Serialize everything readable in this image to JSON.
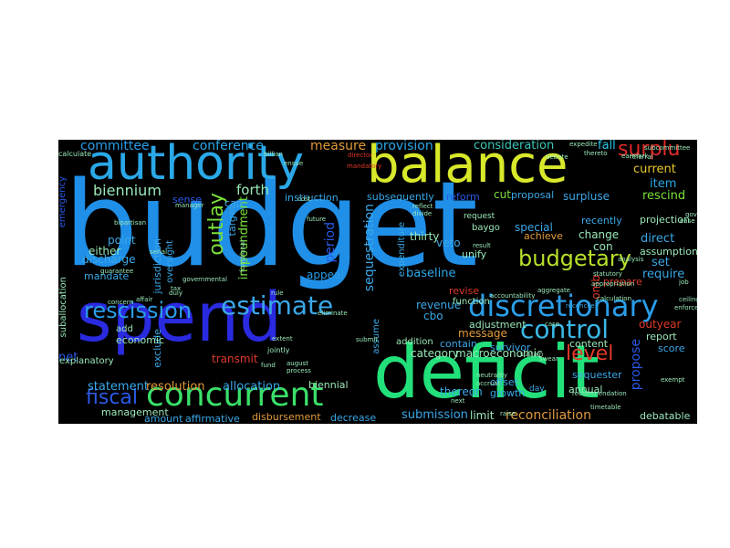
{
  "cloud": {
    "background": "#000000",
    "words": [
      {
        "text": "budget",
        "color": "#1f8fe8"
      },
      {
        "text": "spend",
        "color": "#2a2ae0"
      },
      {
        "text": "deficit",
        "color": "#22e07a"
      },
      {
        "text": "balance",
        "color": "#d8e82a"
      },
      {
        "text": "authority",
        "color": "#2aa8e8"
      },
      {
        "text": "discretionary",
        "color": "#2a9ee8"
      },
      {
        "text": "concurrent",
        "color": "#3ae06a"
      },
      {
        "text": "estimate",
        "color": "#3aa8e8"
      },
      {
        "text": "rescission",
        "color": "#2a9ee8"
      },
      {
        "text": "control",
        "color": "#3ab8e8"
      },
      {
        "text": "budgetary",
        "color": "#b8e02a"
      },
      {
        "text": "outlay",
        "color": "#7ae03a"
      },
      {
        "text": "fiscal",
        "color": "#2a5ae8"
      },
      {
        "text": "level",
        "color": "#e03a2a"
      },
      {
        "text": "surplu",
        "color": "#e02a2a"
      },
      {
        "text": "biennium",
        "color": "#9ae8b8"
      },
      {
        "text": "committee",
        "color": "#2a9ee8"
      },
      {
        "text": "conference",
        "color": "#2aa8e8"
      },
      {
        "text": "forth",
        "color": "#9ae8b8"
      },
      {
        "text": "measure",
        "color": "#e09a3a"
      },
      {
        "text": "provision",
        "color": "#2aa8e8"
      },
      {
        "text": "consideration",
        "color": "#3ac8b8"
      },
      {
        "text": "fall",
        "color": "#2ac8e8"
      },
      {
        "text": "current",
        "color": "#e8c82a"
      },
      {
        "text": "item",
        "color": "#2aa8e8"
      },
      {
        "text": "rescind",
        "color": "#7ae03a"
      },
      {
        "text": "surpluse",
        "color": "#3aa8e8"
      },
      {
        "text": "cut",
        "color": "#7ae03a"
      },
      {
        "text": "proposal",
        "color": "#3aa8e8"
      },
      {
        "text": "reform",
        "color": "#2a5ae8"
      },
      {
        "text": "subsequently",
        "color": "#3aa8e8"
      },
      {
        "text": "sequestration",
        "color": "#3aa8e8"
      },
      {
        "text": "impoundment",
        "color": "#7ae03a"
      },
      {
        "text": "jurisdiction",
        "color": "#3aa8e8"
      },
      {
        "text": "period",
        "color": "#2a5ae8"
      },
      {
        "text": "appeal",
        "color": "#2a9ee8"
      },
      {
        "text": "instruction",
        "color": "#3aa8e8"
      },
      {
        "text": "sense",
        "color": "#2a5ae8"
      },
      {
        "text": "cap",
        "color": "#3aa8e8"
      },
      {
        "text": "target",
        "color": "#3aa8e8"
      },
      {
        "text": "point",
        "color": "#3aa8e8"
      },
      {
        "text": "either",
        "color": "#9ae8b8"
      },
      {
        "text": "discharge",
        "color": "#3aa8e8"
      },
      {
        "text": "mandate",
        "color": "#3aa8e8"
      },
      {
        "text": "oversight",
        "color": "#3aa8e8"
      },
      {
        "text": "thirty",
        "color": "#9ae8b8"
      },
      {
        "text": "veto",
        "color": "#3aa8e8"
      },
      {
        "text": "baseline",
        "color": "#2aa8e8"
      },
      {
        "text": "unify",
        "color": "#9ae8b8"
      },
      {
        "text": "special",
        "color": "#3aa8e8"
      },
      {
        "text": "achieve",
        "color": "#e09a3a"
      },
      {
        "text": "recently",
        "color": "#3aa8e8"
      },
      {
        "text": "change",
        "color": "#9ae8b8"
      },
      {
        "text": "con",
        "color": "#9ae8b8"
      },
      {
        "text": "projection",
        "color": "#9ae8b8"
      },
      {
        "text": "assumption",
        "color": "#9ae8b8"
      },
      {
        "text": "direct",
        "color": "#3aa8e8"
      },
      {
        "text": "set",
        "color": "#3aa8e8"
      },
      {
        "text": "require",
        "color": "#3aa8e8"
      },
      {
        "text": "omb",
        "color": "#e03a2a"
      },
      {
        "text": "prepare",
        "color": "#e03a2a"
      },
      {
        "text": "revise",
        "color": "#e03a2a"
      },
      {
        "text": "revenue",
        "color": "#3aa8e8"
      },
      {
        "text": "cbo",
        "color": "#3aa8e8"
      },
      {
        "text": "adjustment",
        "color": "#9ae8b8"
      },
      {
        "text": "message",
        "color": "#e09a3a"
      },
      {
        "text": "category",
        "color": "#9ae8b8"
      },
      {
        "text": "contain",
        "color": "#3aa8e8"
      },
      {
        "text": "survivor",
        "color": "#3aa8e8"
      },
      {
        "text": "macroeconomic",
        "color": "#9ae8b8"
      },
      {
        "text": "addition",
        "color": "#9ae8b8"
      },
      {
        "text": "offset",
        "color": "#3aa8e8"
      },
      {
        "text": "thereon",
        "color": "#3aa8e8"
      },
      {
        "text": "growth",
        "color": "#3aa8e8"
      },
      {
        "text": "propose",
        "color": "#2a5ae8"
      },
      {
        "text": "outyear",
        "color": "#e03a2a"
      },
      {
        "text": "report",
        "color": "#9ae8b8"
      },
      {
        "text": "score",
        "color": "#3aa8e8"
      },
      {
        "text": "content",
        "color": "#9ae8b8"
      },
      {
        "text": "annual",
        "color": "#9ae8b8"
      },
      {
        "text": "sequester",
        "color": "#3aa8e8"
      },
      {
        "text": "reconciliation",
        "color": "#e09a3a"
      },
      {
        "text": "debatable",
        "color": "#9ae8b8"
      },
      {
        "text": "submission",
        "color": "#3aa8e8"
      },
      {
        "text": "limit",
        "color": "#9ae8b8"
      },
      {
        "text": "decrease",
        "color": "#3aa8e8"
      },
      {
        "text": "disbursement",
        "color": "#e09a3a"
      },
      {
        "text": "affirmative",
        "color": "#3aa8e8"
      },
      {
        "text": "amount",
        "color": "#3aa8e8"
      },
      {
        "text": "management",
        "color": "#9ae8b8"
      },
      {
        "text": "statement",
        "color": "#3aa8e8"
      },
      {
        "text": "net",
        "color": "#2a5ae8"
      },
      {
        "text": "resolution",
        "color": "#e09a3a"
      },
      {
        "text": "allocation",
        "color": "#3aa8e8"
      },
      {
        "text": "biennial",
        "color": "#9ae8b8"
      },
      {
        "text": "transmit",
        "color": "#e03a2a"
      },
      {
        "text": "exclude",
        "color": "#3aa8e8"
      },
      {
        "text": "economic",
        "color": "#9ae8b8"
      },
      {
        "text": "add",
        "color": "#9ae8b8"
      },
      {
        "text": "suballocation",
        "color": "#9ae8b8"
      },
      {
        "text": "emergency",
        "color": "#2a5ae8"
      },
      {
        "text": "explanatory",
        "color": "#9ae8b8"
      },
      {
        "text": "assume",
        "color": "#3aa8e8"
      },
      {
        "text": "expenditure",
        "color": "#3aa8e8"
      },
      {
        "text": "function",
        "color": "#9ae8b8"
      },
      {
        "text": "baygo",
        "color": "#9ae8b8"
      },
      {
        "text": "request",
        "color": "#9ae8b8"
      },
      {
        "text": "calculate",
        "color": "#9ae8b8"
      },
      {
        "text": "manager",
        "color": "#9ae8b8"
      },
      {
        "text": "bipartisan",
        "color": "#9ae8b8"
      },
      {
        "text": "future",
        "color": "#9ae8b8"
      },
      {
        "text": "reflect",
        "color": "#9ae8b8"
      },
      {
        "text": "debate",
        "color": "#9ae8b8"
      },
      {
        "text": "statutory",
        "color": "#9ae8b8"
      },
      {
        "text": "analysis",
        "color": "#9ae8b8"
      },
      {
        "text": "sustain",
        "color": "#9ae8b8"
      },
      {
        "text": "swear",
        "color": "#9ae8b8"
      },
      {
        "text": "day",
        "color": "#3aa8e8"
      },
      {
        "text": "next",
        "color": "#9ae8b8"
      },
      {
        "text": "raise",
        "color": "#9ae8b8"
      },
      {
        "text": "jointly",
        "color": "#9ae8b8"
      },
      {
        "text": "fund",
        "color": "#9ae8b8"
      },
      {
        "text": "guarantee",
        "color": "#9ae8b8"
      },
      {
        "text": "affair",
        "color": "#9ae8b8"
      },
      {
        "text": "concern",
        "color": "#9ae8b8"
      },
      {
        "text": "subcommittee",
        "color": "#9ae8b8"
      },
      {
        "text": "earmark",
        "color": "#9ae8b8"
      },
      {
        "text": "expedite",
        "color": "#9ae8b8"
      },
      {
        "text": "thereto",
        "color": "#9ae8b8"
      },
      {
        "text": "result",
        "color": "#9ae8b8"
      },
      {
        "text": "accountability",
        "color": "#9ae8b8"
      },
      {
        "text": "eliminate",
        "color": "#9ae8b8"
      },
      {
        "text": "submit",
        "color": "#9ae8b8"
      },
      {
        "text": "extent",
        "color": "#9ae8b8"
      },
      {
        "text": "august",
        "color": "#9ae8b8"
      },
      {
        "text": "process",
        "color": "#9ae8b8"
      },
      {
        "text": "duly",
        "color": "#9ae8b8"
      },
      {
        "text": "rule",
        "color": "#9ae8b8"
      },
      {
        "text": "functional",
        "color": "#9ae8b8"
      },
      {
        "text": "billion",
        "color": "#9ae8b8"
      },
      {
        "text": "ensue",
        "color": "#9ae8b8"
      },
      {
        "text": "director",
        "color": "#e03a2a"
      },
      {
        "text": "mandatory",
        "color": "#e03a2a"
      },
      {
        "text": "reconcile",
        "color": "#3aa8e8"
      },
      {
        "text": "case",
        "color": "#9ae8b8"
      },
      {
        "text": "aggregate",
        "color": "#9ae8b8"
      },
      {
        "text": "accrual",
        "color": "#9ae8b8"
      },
      {
        "text": "neutrality",
        "color": "#9ae8b8"
      },
      {
        "text": "recommendation",
        "color": "#9ae8b8"
      },
      {
        "text": "calculation",
        "color": "#9ae8b8"
      },
      {
        "text": "appropriation",
        "color": "#9ae8b8"
      },
      {
        "text": "ceiling",
        "color": "#9ae8b8"
      },
      {
        "text": "exempt",
        "color": "#9ae8b8"
      },
      {
        "text": "job",
        "color": "#9ae8b8"
      },
      {
        "text": "govern",
        "color": "#9ae8b8"
      },
      {
        "text": "referral",
        "color": "#9ae8b8"
      },
      {
        "text": "ease",
        "color": "#9ae8b8"
      },
      {
        "text": "tax",
        "color": "#9ae8b8"
      },
      {
        "text": "cost",
        "color": "#9ae8b8"
      },
      {
        "text": "divide",
        "color": "#9ae8b8"
      },
      {
        "text": "timetable",
        "color": "#9ae8b8"
      },
      {
        "text": "enforce",
        "color": "#9ae8b8"
      },
      {
        "text": "governmental",
        "color": "#9ae8b8"
      },
      {
        "text": "serial",
        "color": "#9ae8b8"
      }
    ]
  }
}
